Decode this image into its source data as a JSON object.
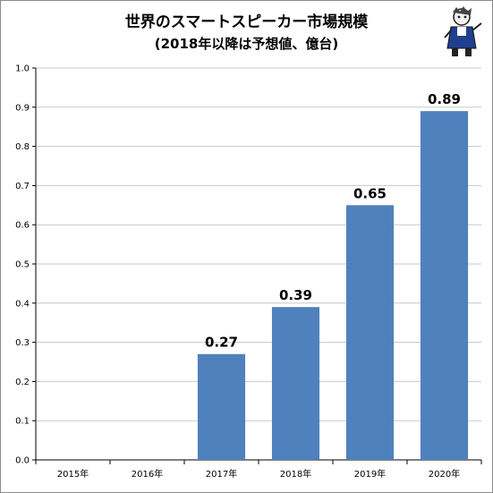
{
  "chart_data": {
    "type": "bar",
    "title": "世界のスマートスピーカー市場規模",
    "subtitle": "(2018年以降は予想値、億台)",
    "xlabel": "",
    "ylabel": "",
    "categories": [
      "2015年",
      "2016年",
      "2017年",
      "2018年",
      "2019年",
      "2020年"
    ],
    "values": [
      null,
      null,
      0.27,
      0.39,
      0.65,
      0.89
    ],
    "data_labels": [
      "",
      "",
      "0.27",
      "0.39",
      "0.65",
      "0.89"
    ],
    "y_ticks": [
      "0.0",
      "0.1",
      "0.2",
      "0.3",
      "0.4",
      "0.5",
      "0.6",
      "0.7",
      "0.8",
      "0.9",
      "1.0"
    ],
    "ylim": [
      0,
      1.0
    ],
    "grid": true,
    "bar_color": "#4f81bd",
    "grid_color": "#c8c8c8"
  },
  "mascot": {
    "icon": "mascot-character-icon"
  }
}
